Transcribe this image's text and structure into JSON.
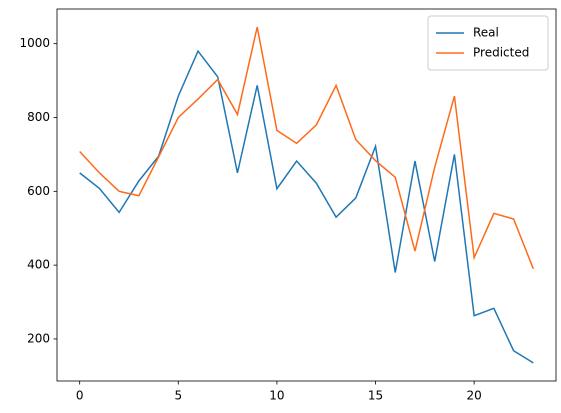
{
  "chart_data": {
    "type": "line",
    "x": [
      0,
      1,
      2,
      3,
      4,
      5,
      6,
      7,
      8,
      9,
      10,
      11,
      12,
      13,
      14,
      15,
      16,
      17,
      18,
      19,
      20,
      21,
      22,
      23
    ],
    "series": [
      {
        "name": "Real",
        "color": "#1f77b4",
        "values": [
          650,
          608,
          543,
          628,
          695,
          858,
          980,
          910,
          650,
          887,
          607,
          682,
          622,
          530,
          582,
          722,
          380,
          682,
          410,
          700,
          263,
          283,
          168,
          135
        ]
      },
      {
        "name": "Predicted",
        "color": "#ff6a1a",
        "values": [
          708,
          650,
          600,
          588,
          693,
          800,
          850,
          903,
          808,
          1045,
          765,
          730,
          780,
          887,
          740,
          683,
          638,
          438,
          665,
          858,
          420,
          540,
          525,
          390
        ]
      }
    ],
    "xlim": [
      -1.15,
      24.15
    ],
    "ylim": [
      86,
      1094
    ],
    "xticks": [
      0,
      5,
      10,
      15,
      20
    ],
    "yticks": [
      200,
      400,
      600,
      800,
      1000
    ],
    "grid": false,
    "legend": "upper right"
  }
}
